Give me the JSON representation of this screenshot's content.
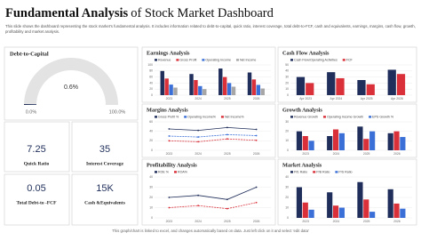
{
  "header": {
    "title_bold": "Fundamental Analysis",
    "title_rest": "of Stock Market Dashboard",
    "subtitle": "This slide shows the dashboard representing the stock market's fundamental analysis. It includes information related to debt-to-capital, quick ratio, interest coverage, total debt-to-FCF, cash and equivalents, earnings, margins, cash flow, growth, profitability and market analysis."
  },
  "gauge": {
    "title": "Debt-to-Capital",
    "value": 0.6,
    "value_label": "0.6%",
    "min": {
      "value": 0,
      "label": "0.0%"
    },
    "max": {
      "value": 100,
      "label": "100.0%"
    },
    "color": "#1f2e5a"
  },
  "kpis": [
    {
      "value": 7.25,
      "label": "Quick Ratio"
    },
    {
      "value": 35,
      "label": "Interest Coverage"
    },
    {
      "value": 0.05,
      "label": "Total Debt-to -FCF"
    },
    {
      "value": {
        "value": 15000,
        "label": "15K"
      },
      "label": "Cash &Equivalents"
    }
  ],
  "chart_data": [
    {
      "type": "bar",
      "title": "Earnings Analysis",
      "categories": [
        "2023",
        "2024",
        "2025",
        "2026"
      ],
      "ylim": [
        0,
        100
      ],
      "yticks": [
        0,
        20,
        40,
        60,
        80,
        100
      ],
      "series": [
        {
          "name": "Revenue",
          "color": "#1f2e5a",
          "values": [
            80,
            70,
            88,
            75
          ]
        },
        {
          "name": "Gross Profit",
          "color": "#d9303a",
          "values": [
            55,
            50,
            60,
            52
          ]
        },
        {
          "name": "Operating Income",
          "color": "#3a6fd8",
          "values": [
            35,
            30,
            40,
            34
          ]
        },
        {
          "name": "Net Income",
          "color": "#a6a6a6",
          "values": [
            25,
            20,
            28,
            22
          ]
        }
      ]
    },
    {
      "type": "bar",
      "title": "Cash Flow Analysis",
      "categories": [
        "Apr 2023",
        "Apr 2024",
        "Apr 2025",
        "Apr 2026"
      ],
      "ylim": [
        0,
        50
      ],
      "yticks": [
        0,
        10,
        20,
        30,
        40,
        50
      ],
      "series": [
        {
          "name": "Cash Flow/Operating Activities",
          "color": "#1f2e5a",
          "values": [
            30,
            38,
            25,
            42
          ]
        },
        {
          "name": "FCF",
          "color": "#d9303a",
          "values": [
            20,
            28,
            18,
            35
          ]
        }
      ]
    },
    {
      "type": "line",
      "title": "Margins Analysis",
      "categories": [
        "2023",
        "2024",
        "2025",
        "2026"
      ],
      "ylim": [
        0,
        60
      ],
      "yticks": [
        0,
        20,
        40,
        60
      ],
      "series": [
        {
          "name": "Gross Profit %",
          "color": "#1f2e5a",
          "values": [
            45,
            42,
            48,
            44
          ]
        },
        {
          "name": "Operating Income%",
          "color": "#3a6fd8",
          "values": [
            30,
            28,
            33,
            31
          ]
        },
        {
          "name": "Net Income%",
          "color": "#d9303a",
          "values": [
            20,
            18,
            24,
            21
          ]
        }
      ]
    },
    {
      "type": "bar",
      "title": "Growth Analysis",
      "categories": [
        "2023",
        "2024",
        "2025",
        "2026"
      ],
      "ylim": [
        0,
        30
      ],
      "yticks": [
        0,
        10,
        20,
        30
      ],
      "series": [
        {
          "name": "Revenue Growth",
          "color": "#1f2e5a",
          "values": [
            20,
            15,
            25,
            18
          ]
        },
        {
          "name": "Operating Income Growth",
          "color": "#d9303a",
          "values": [
            15,
            22,
            12,
            20
          ]
        },
        {
          "name": "EPS Growth %",
          "color": "#3a6fd8",
          "values": [
            10,
            18,
            20,
            14
          ]
        }
      ]
    },
    {
      "type": "line",
      "title": "Profitability Analysis",
      "categories": [
        "2023",
        "2024",
        "2025",
        "2026"
      ],
      "ylim": [
        0,
        40
      ],
      "yticks": [
        0,
        10,
        20,
        30,
        40
      ],
      "series": [
        {
          "name": "ROE %",
          "color": "#1f2e5a",
          "values": [
            20,
            22,
            18,
            30
          ]
        },
        {
          "name": "ROA%",
          "color": "#d9303a",
          "values": [
            10,
            12,
            9,
            15
          ]
        }
      ]
    },
    {
      "type": "bar",
      "title": "Market Analysis",
      "categories": [
        "2023",
        "2024",
        "2025",
        "2026"
      ],
      "ylim": [
        0,
        40
      ],
      "yticks": [
        0,
        10,
        20,
        30,
        40
      ],
      "series": [
        {
          "name": "P/E Ratio",
          "color": "#1f2e5a",
          "values": [
            30,
            25,
            35,
            28
          ]
        },
        {
          "name": "P/B Ratio",
          "color": "#d9303a",
          "values": [
            15,
            12,
            18,
            14
          ]
        },
        {
          "name": "P/S Ratio",
          "color": "#3a6fd8",
          "values": [
            8,
            10,
            6,
            9
          ]
        }
      ]
    }
  ],
  "footer": "This graph/chart is linked to excel, and changes automatically based on data. Just left click on it and select 'edit data'"
}
